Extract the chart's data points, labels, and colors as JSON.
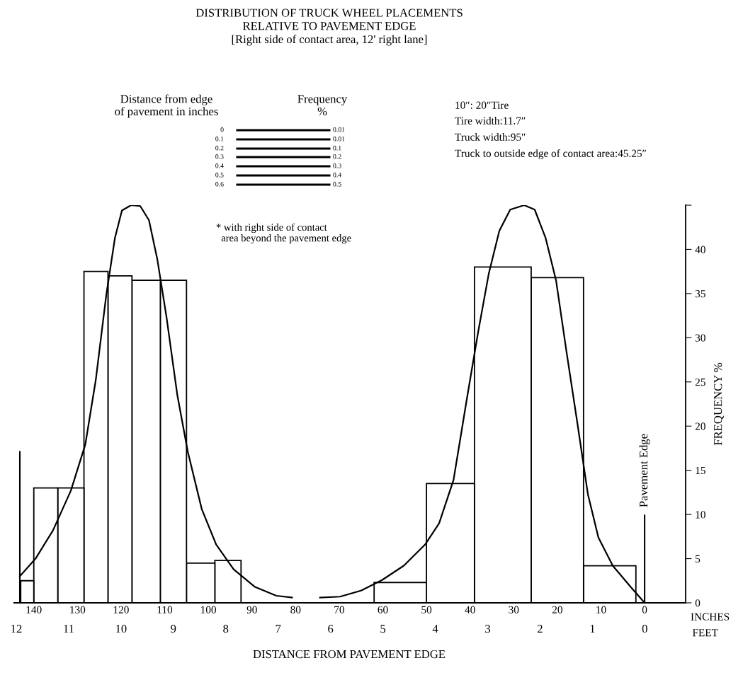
{
  "chart_data": {
    "type": "histogram",
    "title": "DISTRIBUTION OF TRUCK WHEEL PLACEMENTS\nRELATIVE TO PAVEMENT EDGE\n[Right side of contact area, 12' right lane]",
    "xlabel": "DISTANCE FROM PAVEMENT EDGE",
    "ylabel": "FREQUENCY %",
    "x2label": "FEET",
    "bins": [
      2,
      14,
      26,
      39,
      50,
      62,
      92.5,
      98.5,
      105,
      111,
      117.5,
      123,
      128.5,
      134.5,
      140,
      143
    ],
    "values": [
      4.2,
      36.8,
      38,
      13.5,
      2.3,
      null,
      4.8,
      4.5,
      36.5,
      36.5,
      37,
      37.5,
      13,
      13,
      2.5
    ],
    "color": "#ffffff",
    "series": [
      {
        "type": "line",
        "color": "#000000",
        "x": [
          143.2,
          139.6,
          135.6,
          131.5,
          128.2,
          125.8,
          123.4,
          121.4,
          119.8,
          117.7,
          115.6,
          113.6,
          111.7,
          109.6,
          107.1,
          104.7,
          101.5,
          98.2,
          94.2,
          89.3,
          84.4,
          80.8
        ],
        "values": [
          3.0,
          5.0,
          8.2,
          12.7,
          17.9,
          25.2,
          34.8,
          41.3,
          44.4,
          45,
          44.9,
          43.3,
          38.9,
          32.4,
          23.5,
          17.1,
          10.6,
          6.6,
          3.8,
          1.8,
          0.8,
          0.6
        ]
      },
      {
        "type": "line",
        "color": "#000000",
        "x": [
          74.4,
          69.8,
          64.9,
          60.1,
          55.2,
          50.3,
          47.1,
          43.8,
          40.6,
          38.1,
          35.7,
          33.3,
          30.8,
          27.6,
          25.2,
          22.7,
          20.3,
          17.9,
          15.4,
          13.0,
          10.6,
          7.3,
          3.2,
          0
        ],
        "values": [
          0.6,
          0.7,
          1.4,
          2.6,
          4.2,
          6.6,
          9.0,
          13.9,
          23.5,
          30.8,
          37.3,
          42.1,
          44.5,
          45,
          44.5,
          41.3,
          36.5,
          28.4,
          20.3,
          12.3,
          7.4,
          4.2,
          1.8,
          0
        ]
      }
    ],
    "xlim": [
      144.5,
      -9.4
    ],
    "xticks": [
      140,
      130,
      120,
      110,
      100,
      90,
      80,
      70,
      60,
      50,
      40,
      30,
      20,
      10,
      0
    ],
    "x2lim": [
      12.04,
      -0.78
    ],
    "x2ticks": [
      12,
      11,
      10,
      9,
      8,
      7,
      6,
      5,
      4,
      3,
      2,
      1,
      0
    ],
    "ylim": [
      0,
      45
    ],
    "yticks": [
      0,
      5,
      10,
      15,
      20,
      25,
      30,
      35,
      40,
      {
        "value": 45,
        "label": null
      }
    ],
    "ref_lines": [
      {
        "axis": "x",
        "value": 0,
        "label": "Pavement Edge"
      },
      {
        "axis": "x",
        "value": 143.2,
        "label": null
      }
    ],
    "grid": false,
    "annotations": [
      "Distance from edge\nof pavement in inches",
      "Frequency\n%",
      "0",
      "0.1",
      "0.2",
      "0.3",
      "0.4",
      "0.5",
      "0.6",
      "0.01",
      "0.01",
      "0.1",
      "0.2",
      "0.3",
      "0.4",
      "0.5",
      "* with right side of contact\n  area beyond the pavement edge",
      "10″: 20″Tire",
      "Tire width:11.7″",
      "Truck width:95″",
      "Truck to outside edge of contact area:45.25″",
      "INCHES"
    ]
  }
}
